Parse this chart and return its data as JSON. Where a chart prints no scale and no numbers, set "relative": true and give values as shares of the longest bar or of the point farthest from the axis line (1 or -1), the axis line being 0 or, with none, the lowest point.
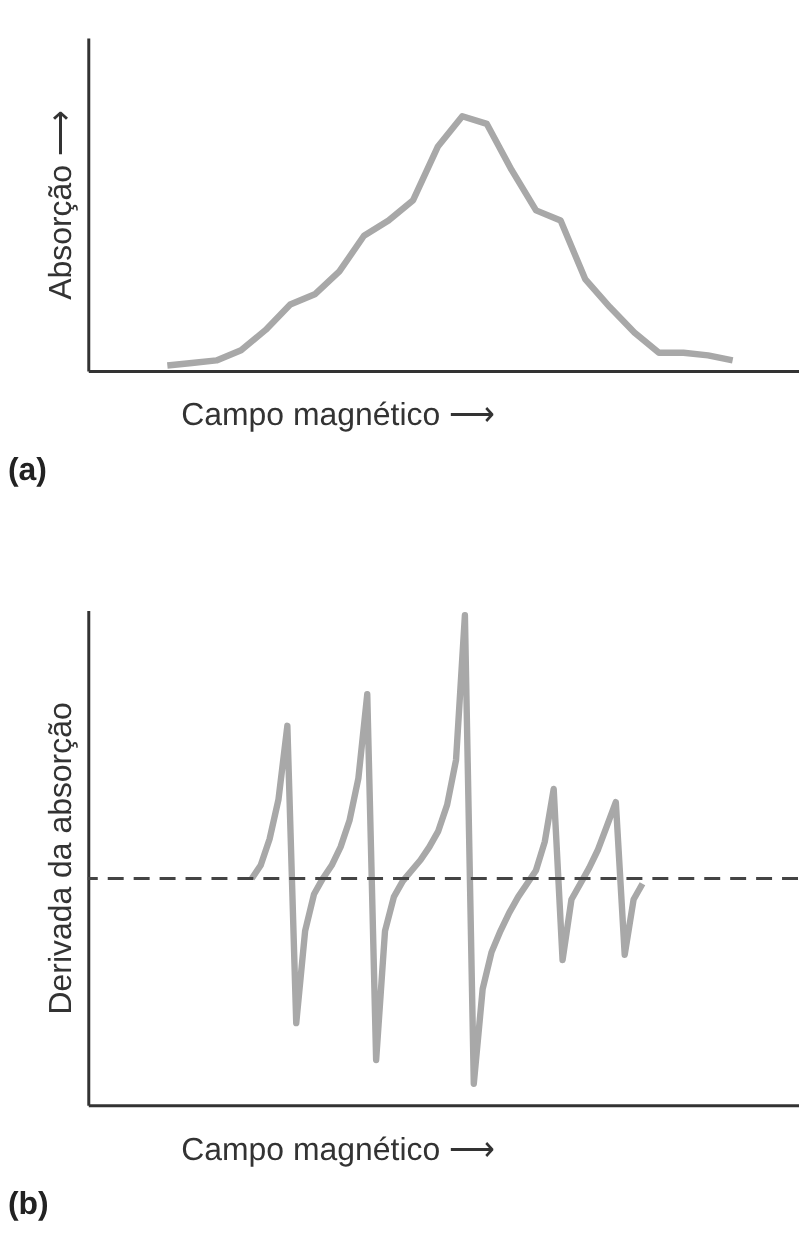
{
  "chart_data": [
    {
      "type": "line",
      "relative": true,
      "ylabel": "Absorção ⟶",
      "xlabel": "Campo magnético ⟶",
      "annotations": [
        "(a)"
      ],
      "tick_labels": false,
      "grid": false,
      "marker": "none",
      "line_style": "solid",
      "categories": [
        null,
        null,
        null,
        null,
        null,
        null,
        null,
        null,
        null,
        null,
        null,
        null,
        null,
        null,
        null,
        null,
        null,
        null,
        null,
        null,
        null,
        null,
        null,
        null
      ],
      "series": [
        {
          "color": "#a8a8a8",
          "values": [
            0.02,
            0.03,
            0.04,
            0.08,
            0.16,
            0.26,
            0.3,
            0.39,
            0.53,
            0.59,
            0.67,
            0.88,
            1.0,
            0.97,
            0.79,
            0.63,
            0.59,
            0.36,
            0.25,
            0.15,
            0.07,
            0.07,
            0.06,
            0.04
          ]
        }
      ]
    },
    {
      "type": "line",
      "relative": true,
      "ylabel": "Derivada da absorção",
      "xlabel": "Campo magnético ⟶",
      "annotations": [
        "(b)"
      ],
      "tick_labels": false,
      "grid": false,
      "marker": "none",
      "line_style": "solid",
      "categories": [
        null,
        null,
        null,
        null,
        null,
        null,
        null,
        null,
        null,
        null,
        null,
        null,
        null,
        null,
        null,
        null,
        null,
        null,
        null,
        null,
        null,
        null,
        null,
        null,
        null,
        null,
        null,
        null,
        null,
        null,
        null,
        null,
        null,
        null,
        null,
        null,
        null,
        null,
        null,
        null,
        null,
        null,
        null,
        null,
        null
      ],
      "ref_lines": [
        {
          "axis": "y",
          "value": 0,
          "color": "#444444",
          "line_style": "dashed"
        }
      ],
      "series": [
        {
          "color": "#a8a8a8",
          "values": [
            0,
            0.05,
            0.15,
            0.3,
            0.58,
            -0.55,
            -0.2,
            -0.06,
            0,
            0.05,
            0.12,
            0.22,
            0.38,
            0.7,
            -0.69,
            -0.2,
            -0.07,
            -0.01,
            0.03,
            0.07,
            0.12,
            0.18,
            0.28,
            0.45,
            1.0,
            -0.78,
            -0.42,
            -0.28,
            -0.2,
            -0.13,
            -0.07,
            -0.02,
            0.03,
            0.14,
            0.34,
            -0.31,
            -0.08,
            -0.02,
            0.04,
            0.11,
            0.2,
            0.29,
            -0.29,
            -0.08,
            -0.02
          ]
        }
      ]
    }
  ]
}
